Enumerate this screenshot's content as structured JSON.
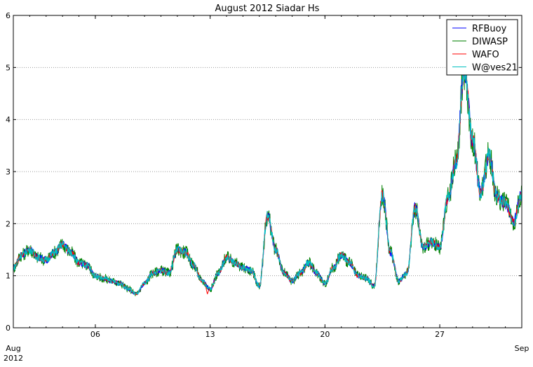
{
  "chart_data": {
    "type": "line",
    "title": "August 2012 Siadar Hs",
    "xlabel": "",
    "ylabel": "",
    "x_range": [
      "2012-08-01",
      "2012-09-01"
    ],
    "ylim": [
      0,
      6
    ],
    "yticks": [
      0,
      1,
      2,
      3,
      4,
      5,
      6
    ],
    "ytick_labels": [
      "0",
      "1",
      "2",
      "3",
      "4",
      "5",
      "6"
    ],
    "xticks": [
      {
        "date": "2012-08-01",
        "label": "Aug",
        "sublabel": "2012"
      },
      {
        "date": "2012-08-06",
        "label": "06"
      },
      {
        "date": "2012-08-13",
        "label": "13"
      },
      {
        "date": "2012-08-20",
        "label": "20"
      },
      {
        "date": "2012-08-27",
        "label": "27"
      },
      {
        "date": "2012-09-01",
        "label": "Sep"
      }
    ],
    "grid": "horizontal dotted",
    "legend_position": "top-right",
    "series": [
      {
        "name": "RFBuoy",
        "color": "#0000ff"
      },
      {
        "name": "DIWASP",
        "color": "#008000"
      },
      {
        "name": "WAFO",
        "color": "#ff0000"
      },
      {
        "name": "W@ves21",
        "color": "#00bfbf"
      }
    ],
    "x": [
      "2012-08-01 00:00",
      "2012-08-01 12:00",
      "2012-08-02 00:00",
      "2012-08-02 12:00",
      "2012-08-03 00:00",
      "2012-08-03 12:00",
      "2012-08-04 00:00",
      "2012-08-04 12:00",
      "2012-08-05 00:00",
      "2012-08-05 12:00",
      "2012-08-06 00:00",
      "2012-08-06 12:00",
      "2012-08-07 00:00",
      "2012-08-07 12:00",
      "2012-08-08 00:00",
      "2012-08-08 12:00",
      "2012-08-09 00:00",
      "2012-08-09 12:00",
      "2012-08-10 00:00",
      "2012-08-10 12:00",
      "2012-08-11 00:00",
      "2012-08-11 12:00",
      "2012-08-12 00:00",
      "2012-08-12 12:00",
      "2012-08-13 00:00",
      "2012-08-13 12:00",
      "2012-08-14 00:00",
      "2012-08-14 12:00",
      "2012-08-15 00:00",
      "2012-08-15 12:00",
      "2012-08-16 00:00",
      "2012-08-16 12:00",
      "2012-08-17 00:00",
      "2012-08-17 12:00",
      "2012-08-18 00:00",
      "2012-08-18 12:00",
      "2012-08-19 00:00",
      "2012-08-19 12:00",
      "2012-08-20 00:00",
      "2012-08-20 12:00",
      "2012-08-21 00:00",
      "2012-08-21 12:00",
      "2012-08-22 00:00",
      "2012-08-22 12:00",
      "2012-08-23 00:00",
      "2012-08-23 12:00",
      "2012-08-24 00:00",
      "2012-08-24 12:00",
      "2012-08-25 00:00",
      "2012-08-25 12:00",
      "2012-08-26 00:00",
      "2012-08-26 12:00",
      "2012-08-27 00:00",
      "2012-08-27 12:00",
      "2012-08-28 00:00",
      "2012-08-28 12:00",
      "2012-08-29 00:00",
      "2012-08-29 12:00",
      "2012-08-30 00:00",
      "2012-08-30 12:00",
      "2012-08-31 00:00",
      "2012-08-31 12:00",
      "2012-09-01 00:00"
    ],
    "hs": [
      1.15,
      1.4,
      1.5,
      1.35,
      1.3,
      1.45,
      1.6,
      1.45,
      1.25,
      1.2,
      1.0,
      0.95,
      0.9,
      0.85,
      0.75,
      0.65,
      0.85,
      1.05,
      1.1,
      1.05,
      1.5,
      1.45,
      1.2,
      0.9,
      0.75,
      1.05,
      1.35,
      1.25,
      1.15,
      1.1,
      0.8,
      2.15,
      1.5,
      1.05,
      0.9,
      1.05,
      1.25,
      1.05,
      0.85,
      1.15,
      1.4,
      1.25,
      1.0,
      0.95,
      0.8,
      2.55,
      1.45,
      0.9,
      1.05,
      2.3,
      1.55,
      1.65,
      1.55,
      2.5,
      3.2,
      5.0,
      3.6,
      2.6,
      3.3,
      2.5,
      2.4,
      2.05,
      2.55
    ],
    "wafo_dips": [
      {
        "x": "2012-08-12 20:00",
        "y": 0.65
      },
      {
        "x": "2012-08-18 18:00",
        "y": 1.1
      }
    ]
  }
}
